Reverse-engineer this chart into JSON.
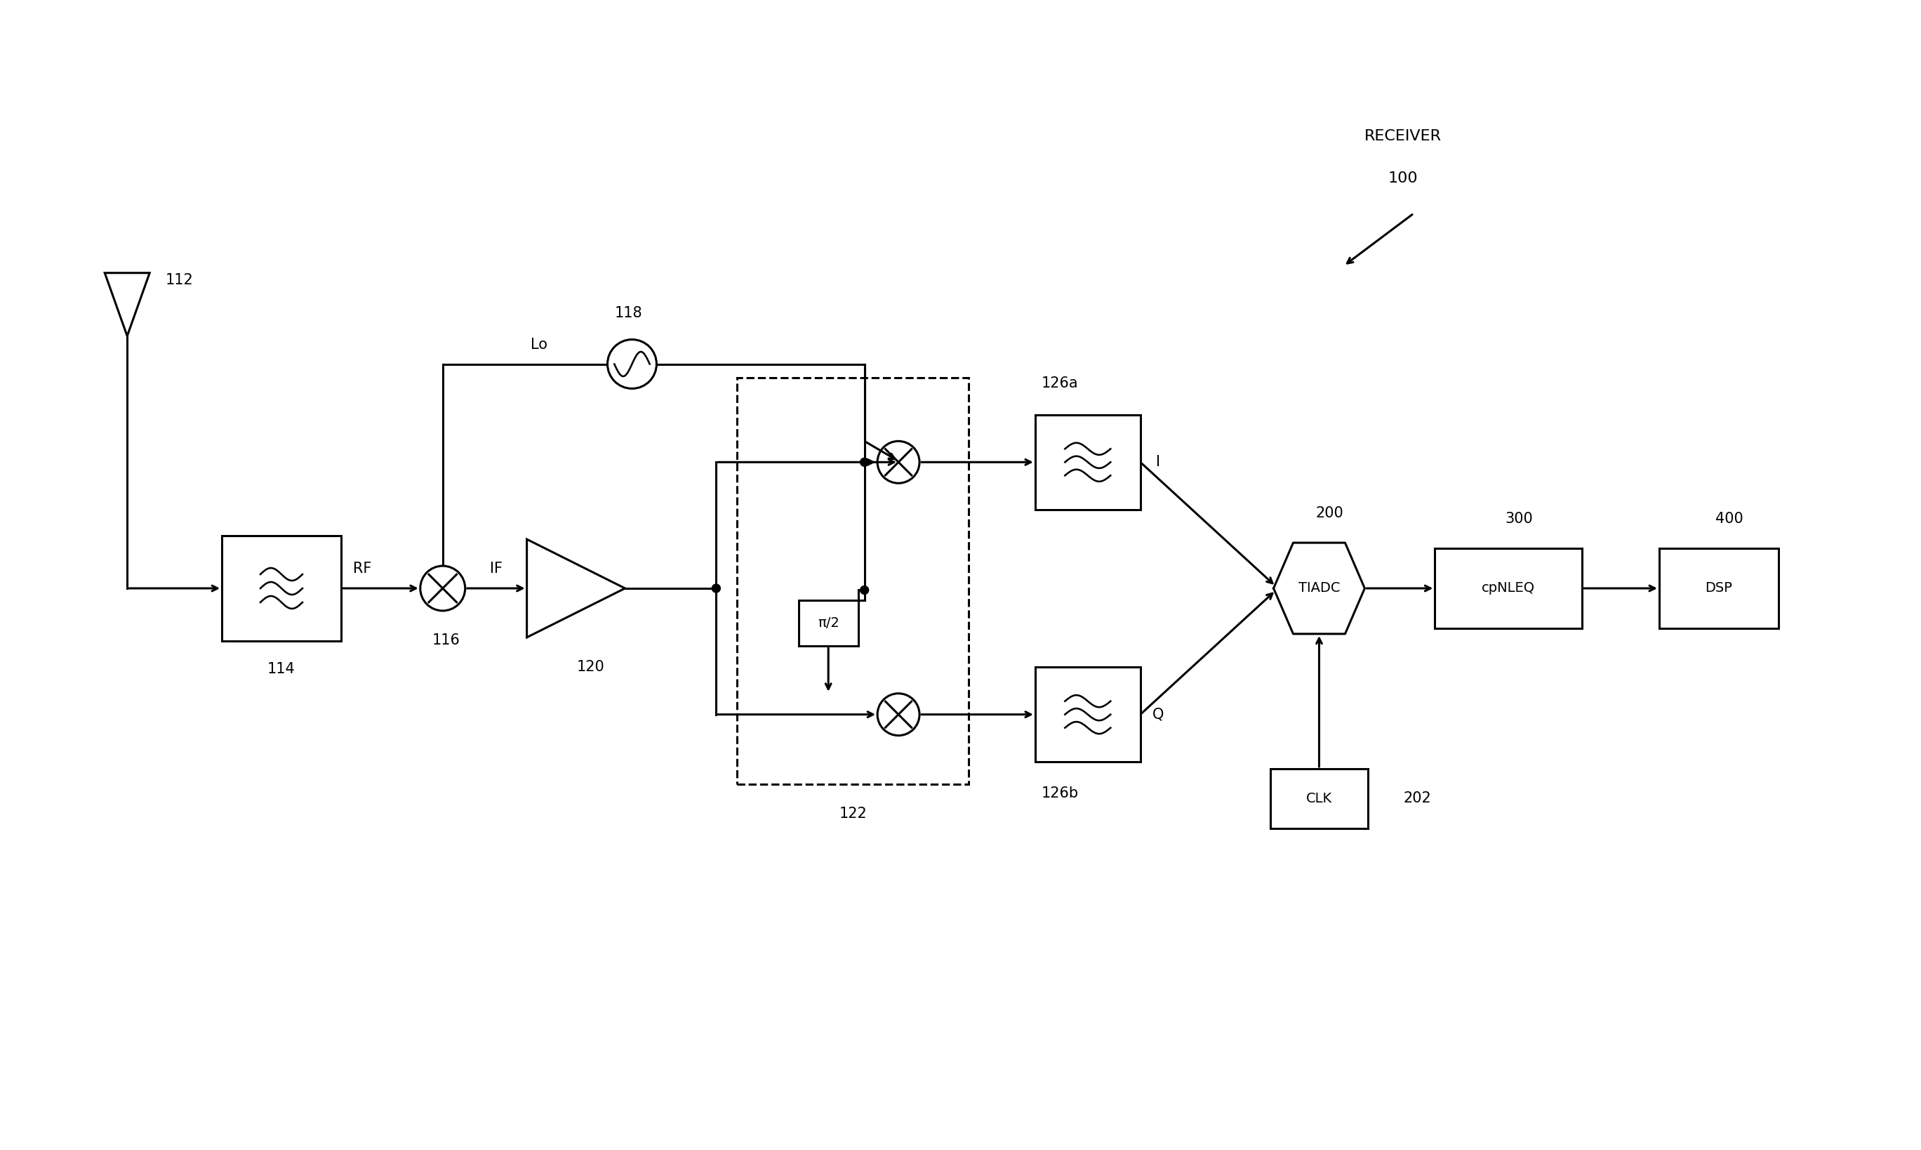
{
  "bg_color": "#ffffff",
  "line_color": "#000000",
  "fig_width": 27.37,
  "fig_height": 16.38,
  "labels": {
    "antenna": "112",
    "bpf": "114",
    "mixer116": "116",
    "lo118": "118",
    "amp120": "120",
    "iq_block": "122",
    "lpf_i": "126a",
    "lpf_q": "126b",
    "tiadc": "200",
    "cpnleq": "300",
    "dsp": "400",
    "clk": "202",
    "receiver_label": "RECEIVER",
    "receiver_num": "100",
    "rf_label": "RF",
    "if_label": "IF",
    "lo_label": "Lo",
    "i_label": "I",
    "q_label": "Q",
    "pi2_label": "π/2",
    "tiadc_text": "TIADC",
    "cpnleq_text": "cpNLEQ",
    "dsp_text": "DSP",
    "clk_text": "CLK"
  }
}
